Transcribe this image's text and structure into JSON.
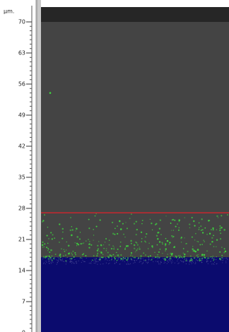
{
  "scale": {
    "unit": "µm.",
    "ylim": [
      0,
      70
    ],
    "yticks": [
      0,
      7,
      14,
      21,
      28,
      35,
      42,
      49,
      56,
      63,
      70
    ],
    "minor_tick_step": 1
  },
  "image": {
    "threshold_line": 27,
    "threshold_color": "#e0222a",
    "surface_level": 17,
    "surface_color": "#0b0b6e",
    "outlier_depth": 54,
    "dot_color": "#3fd43f"
  }
}
